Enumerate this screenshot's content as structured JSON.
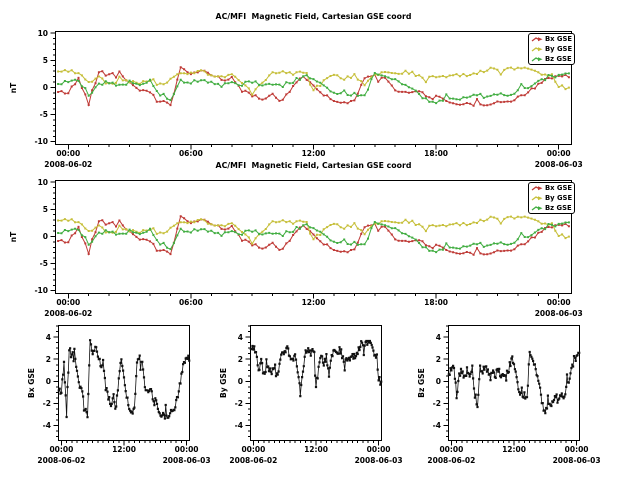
{
  "app": {
    "background": "#ffffff",
    "axis_color": "#000000"
  },
  "overview_panels": [
    {
      "title": "AC/MFI  Magnetic Field, Cartesian GSE coord",
      "ylabel": "nT",
      "ytick_labels": [
        "10",
        "5",
        "0",
        "-5",
        "-10"
      ],
      "ytick_values": [
        10,
        5,
        0,
        -5,
        -10
      ],
      "xtick_labels": [
        "00:00",
        "06:00",
        "12:00",
        "18:00",
        "00:00"
      ],
      "xtick_hours": [
        0,
        6,
        12,
        18,
        24
      ],
      "start_date": "2008-06-02",
      "end_date": "2008-06-03",
      "legend": [
        {
          "label": "Bx GSE"
        },
        {
          "label": "By GSE"
        },
        {
          "label": "Bz GSE"
        }
      ]
    },
    {
      "title": "AC/MFI  Magnetic Field, Cartesian GSE coord",
      "ylabel": "nT",
      "ytick_labels": [
        "10",
        "5",
        "0",
        "-5",
        "-10"
      ],
      "ytick_values": [
        10,
        5,
        0,
        -5,
        -10
      ],
      "xtick_labels": [
        "00:00",
        "06:00",
        "12:00",
        "18:00",
        "00:00"
      ],
      "xtick_hours": [
        0,
        6,
        12,
        18,
        24
      ],
      "start_date": "2008-06-02",
      "end_date": "2008-06-03",
      "legend": [
        {
          "label": "Bx GSE"
        },
        {
          "label": "By GSE"
        },
        {
          "label": "Bz GSE"
        }
      ]
    }
  ],
  "detail_panels": [
    {
      "ylabel": "Bx GSE",
      "ytick_labels": [
        "4",
        "2",
        "0",
        "-2",
        "-4"
      ],
      "ytick_values": [
        4,
        2,
        0,
        -2,
        -4
      ],
      "xtick_labels": [
        "00:00",
        "12:00",
        "00:00"
      ],
      "xtick_hours": [
        0,
        12,
        24
      ],
      "start_date": "2008-06-02",
      "end_date": "2008-06-03"
    },
    {
      "ylabel": "By GSE",
      "ytick_labels": [
        "4",
        "2",
        "0",
        "-2",
        "-4"
      ],
      "ytick_values": [
        4,
        2,
        0,
        -2,
        -4
      ],
      "xtick_labels": [
        "00:00",
        "12:00",
        "00:00"
      ],
      "xtick_hours": [
        0,
        12,
        24
      ],
      "start_date": "2008-06-02",
      "end_date": "2008-06-03"
    },
    {
      "ylabel": "Bz GSE",
      "ytick_labels": [
        "4",
        "2",
        "0",
        "-2",
        "-4"
      ],
      "ytick_values": [
        4,
        2,
        0,
        -2,
        -4
      ],
      "xtick_labels": [
        "00:00",
        "12:00",
        "00:00"
      ],
      "xtick_hours": [
        0,
        12,
        24
      ],
      "start_date": "2008-06-02",
      "end_date": "2008-06-03"
    }
  ],
  "chart_data": {
    "type": "line",
    "title": "AC/MFI  Magnetic Field, Cartesian GSE coord",
    "x_unit": "hours since 2008-06-02 00:00",
    "xlim": [
      -0.65,
      24.65
    ],
    "overview_ylim": [
      -10.6,
      10.4
    ],
    "detail_ylim": [
      -5.4,
      5.1
    ],
    "overview_yticks": [
      10,
      5,
      0,
      -5,
      -10
    ],
    "detail_yticks": [
      4,
      2,
      0,
      -2,
      -4
    ],
    "legend_position": "upper-right",
    "grid": false,
    "keyframe_interval_hours": 0.5,
    "time_start_hours": 0,
    "series": [
      {
        "name": "Bx GSE",
        "color": "#bf3a36",
        "keyframes": [
          -0.9,
          1.6,
          -2.9,
          3.1,
          2.2,
          2.9,
          0.8,
          -0.3,
          -1.2,
          -2.6,
          -3.1,
          3.4,
          2.4,
          3.0,
          2.5,
          1.4,
          1.8,
          -0.6,
          -1.4,
          -2.5,
          -1.3,
          -2.6,
          0.4,
          2.1,
          0.3,
          -1.3,
          -2.2,
          -3.0,
          -2.6,
          1.9,
          2.1,
          1.6,
          -0.6,
          -1.1,
          -0.4,
          -1.6,
          -1.5,
          -2.6,
          -3.0,
          -2.9,
          -3.1,
          -3.0,
          -2.9,
          -2.6,
          -1.8,
          -0.8,
          0.4,
          1.7,
          2.0
        ]
      },
      {
        "name": "By GSE",
        "color": "#c6bf3a",
        "keyframes": [
          3.0,
          2.7,
          0.9,
          2.0,
          0.5,
          1.7,
          1.0,
          0.6,
          1.5,
          0.4,
          1.3,
          2.8,
          2.4,
          2.9,
          2.5,
          1.8,
          2.3,
          0.8,
          -1.1,
          0.9,
          2.5,
          3.0,
          2.6,
          2.9,
          -0.5,
          1.0,
          2.5,
          1.6,
          2.2,
          0.3,
          2.5,
          2.8,
          2.3,
          2.9,
          2.4,
          1.3,
          2.2,
          1.7,
          2.5,
          2.1,
          2.8,
          3.2,
          3.6,
          3.4,
          3.7,
          3.2,
          2.7,
          2.3,
          0.0
        ]
      },
      {
        "name": "Bz GSE",
        "color": "#41ad41",
        "keyframes": [
          0.9,
          1.4,
          -1.3,
          0.6,
          0.9,
          0.3,
          1.0,
          0.6,
          1.1,
          -1.6,
          -2.2,
          1.2,
          0.7,
          1.5,
          1.0,
          0.4,
          0.9,
          0.6,
          1.2,
          0.2,
          0.8,
          0.4,
          1.1,
          2.2,
          1.5,
          0.1,
          -0.9,
          -1.3,
          -1.1,
          -1.5,
          2.7,
          2.0,
          1.4,
          0.3,
          -0.8,
          -2.2,
          -3.2,
          -1.6,
          -2.3,
          -1.7,
          -1.4,
          -2.0,
          -1.1,
          -1.7,
          -0.8,
          0.2,
          1.1,
          1.8,
          2.3
        ]
      }
    ],
    "detail_series_color": "#111111",
    "sampling": {
      "minutes_per_sample": 10,
      "pad_hours": 0.5,
      "noise_amplitude": 0.33,
      "noise_seed": 42
    }
  }
}
